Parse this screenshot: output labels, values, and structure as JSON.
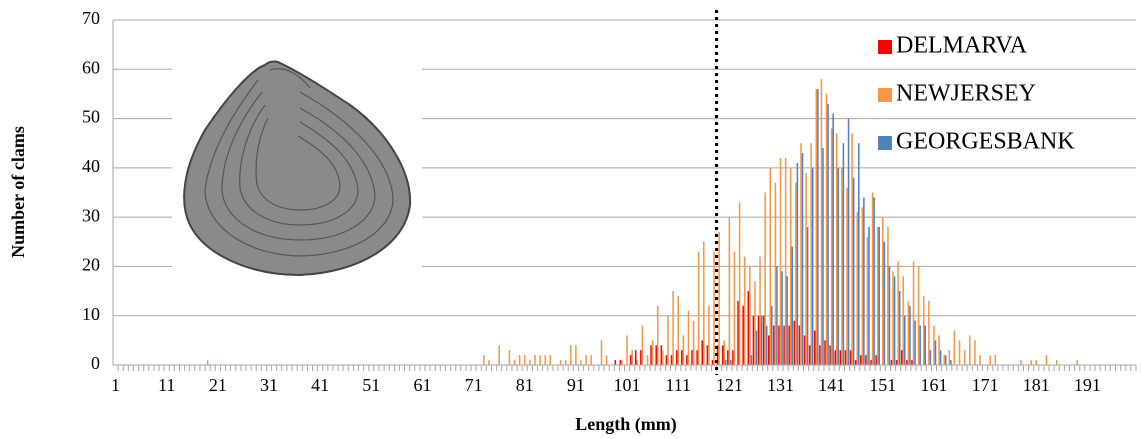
{
  "chart_data": {
    "type": "bar",
    "x_label": "Length (mm)",
    "y_label": "Number  of clams",
    "x": [
      1,
      2,
      3,
      4,
      5,
      6,
      7,
      8,
      9,
      10,
      11,
      12,
      13,
      14,
      15,
      16,
      17,
      18,
      19,
      20,
      21,
      22,
      23,
      24,
      25,
      26,
      27,
      28,
      29,
      30,
      31,
      32,
      33,
      34,
      35,
      36,
      37,
      38,
      39,
      40,
      41,
      42,
      43,
      44,
      45,
      46,
      47,
      48,
      49,
      50,
      51,
      52,
      53,
      54,
      55,
      56,
      57,
      58,
      59,
      60,
      61,
      62,
      63,
      64,
      65,
      66,
      67,
      68,
      69,
      70,
      71,
      72,
      73,
      74,
      75,
      76,
      77,
      78,
      79,
      80,
      81,
      82,
      83,
      84,
      85,
      86,
      87,
      88,
      89,
      90,
      91,
      92,
      93,
      94,
      95,
      96,
      97,
      98,
      99,
      100,
      101,
      102,
      103,
      104,
      105,
      106,
      107,
      108,
      109,
      110,
      111,
      112,
      113,
      114,
      115,
      116,
      117,
      118,
      119,
      120,
      121,
      122,
      123,
      124,
      125,
      126,
      127,
      128,
      129,
      130,
      131,
      132,
      133,
      134,
      135,
      136,
      137,
      138,
      139,
      140,
      141,
      142,
      143,
      144,
      145,
      146,
      147,
      148,
      149,
      150,
      151,
      152,
      153,
      154,
      155,
      156,
      157,
      158,
      159,
      160,
      161,
      162,
      163,
      164,
      165,
      166,
      167,
      168,
      169,
      170,
      171,
      172,
      173,
      174,
      175,
      176,
      177,
      178,
      179,
      180,
      181,
      182,
      183,
      184,
      185,
      186,
      187,
      188,
      189,
      190,
      191,
      192,
      193,
      194,
      195,
      196,
      197,
      198,
      199,
      200
    ],
    "xlim": [
      0.5,
      200.5
    ],
    "xticks": [
      1,
      11,
      21,
      31,
      41,
      51,
      61,
      71,
      81,
      91,
      101,
      111,
      121,
      131,
      141,
      151,
      161,
      171,
      181,
      191
    ],
    "ylim": [
      0,
      70
    ],
    "yticks": [
      0,
      10,
      20,
      30,
      40,
      50,
      60,
      70
    ],
    "grid": true,
    "reference_line": 118.5,
    "legend_position": "upper right",
    "series": [
      {
        "name": "DELMARVA",
        "color": "#ff0000",
        "values": [
          0,
          0,
          0,
          0,
          0,
          0,
          0,
          0,
          0,
          0,
          0,
          0,
          0,
          0,
          0,
          0,
          0,
          0,
          0,
          0,
          0,
          0,
          0,
          0,
          0,
          0,
          0,
          0,
          0,
          0,
          0,
          0,
          0,
          0,
          0,
          0,
          0,
          0,
          0,
          0,
          0,
          0,
          0,
          0,
          0,
          0,
          0,
          0,
          0,
          0,
          0,
          0,
          0,
          0,
          0,
          0,
          0,
          0,
          0,
          0,
          0,
          0,
          0,
          0,
          0,
          0,
          0,
          0,
          0,
          0,
          0,
          0,
          0,
          0,
          0,
          0,
          0,
          0,
          0,
          0,
          0,
          0,
          0,
          0,
          0,
          0,
          0,
          0,
          0,
          0,
          0,
          0,
          0,
          0,
          0,
          0,
          0,
          0,
          1,
          1,
          0,
          2,
          3,
          3,
          0,
          4,
          4,
          4,
          2,
          2,
          3,
          3,
          2,
          3,
          3,
          5,
          4,
          1,
          4,
          4,
          3,
          3,
          13,
          12,
          15,
          10,
          10,
          10,
          6,
          8,
          8,
          8,
          8,
          9,
          8,
          6,
          4,
          7,
          4,
          5,
          4,
          3,
          3,
          3,
          3,
          1,
          2,
          2,
          1,
          2,
          0,
          0,
          1,
          1,
          3,
          1,
          1,
          0,
          0,
          0,
          0,
          0,
          0,
          0,
          0,
          0,
          0,
          0,
          0,
          0,
          0,
          0,
          0,
          0,
          0,
          0,
          0,
          0,
          0,
          0,
          0,
          0,
          0,
          0,
          0,
          0,
          0,
          0,
          0,
          0,
          0,
          0,
          0,
          0,
          0,
          0,
          0,
          0,
          0,
          0
        ]
      },
      {
        "name": "NEWJERSEY",
        "color": "#f79646",
        "values": [
          0,
          0,
          0,
          0,
          0,
          0,
          0,
          0,
          0,
          0,
          0,
          0,
          0,
          0,
          0,
          0,
          0,
          0,
          1,
          0,
          0,
          0,
          0,
          0,
          0,
          0,
          0,
          0,
          0,
          0,
          0,
          0,
          0,
          0,
          0,
          0,
          0,
          0,
          0,
          0,
          0,
          0,
          0,
          0,
          0,
          0,
          0,
          0,
          0,
          0,
          0,
          0,
          0,
          0,
          0,
          0,
          0,
          0,
          0,
          0,
          0,
          0,
          0,
          0,
          0,
          0,
          0,
          0,
          0,
          0,
          0,
          0,
          2,
          1,
          0,
          4,
          0,
          3,
          1,
          2,
          2,
          1,
          2,
          2,
          2,
          2,
          0,
          1,
          1,
          4,
          4,
          1,
          2,
          2,
          0,
          5,
          2,
          0,
          0,
          1,
          6,
          3,
          1,
          8,
          2,
          5,
          12,
          3,
          10,
          15,
          14,
          6,
          11,
          9,
          23,
          25,
          12,
          23,
          27,
          5,
          30,
          23,
          33,
          22,
          20,
          17,
          22,
          35,
          40,
          37,
          42,
          42,
          40,
          37,
          45,
          39,
          45,
          56,
          58,
          55,
          48,
          47,
          40,
          36,
          47,
          31,
          32,
          26,
          35,
          28,
          30,
          28,
          19,
          21,
          18,
          13,
          21,
          20,
          14,
          13,
          8,
          6,
          2,
          3,
          7,
          5,
          3,
          6,
          5,
          2,
          0,
          2,
          2,
          0,
          0,
          0,
          0,
          1,
          0,
          1,
          1,
          0,
          2,
          0,
          1,
          0,
          0,
          0,
          1,
          0,
          0,
          0,
          0,
          0,
          0,
          0,
          0,
          0,
          0,
          0
        ]
      },
      {
        "name": "GEORGESBANK",
        "color": "#4f81bd",
        "values": [
          0,
          0,
          0,
          0,
          0,
          0,
          0,
          0,
          0,
          0,
          0,
          0,
          0,
          0,
          0,
          0,
          0,
          0,
          0,
          0,
          0,
          0,
          0,
          0,
          0,
          0,
          0,
          0,
          0,
          0,
          0,
          0,
          0,
          0,
          0,
          0,
          0,
          0,
          0,
          0,
          0,
          0,
          0,
          0,
          0,
          0,
          0,
          0,
          0,
          0,
          0,
          0,
          0,
          0,
          0,
          0,
          0,
          0,
          0,
          0,
          0,
          0,
          0,
          0,
          0,
          0,
          0,
          0,
          0,
          0,
          0,
          0,
          0,
          0,
          0,
          0,
          0,
          0,
          0,
          0,
          0,
          0,
          0,
          0,
          0,
          0,
          0,
          0,
          0,
          0,
          0,
          0,
          0,
          0,
          0,
          0,
          0,
          0,
          0,
          0,
          0,
          0,
          0,
          0,
          0,
          0,
          0,
          0,
          0,
          0,
          0,
          0,
          0,
          0,
          0,
          0,
          0,
          0,
          0,
          1,
          1,
          0,
          0,
          0,
          2,
          7,
          10,
          8,
          12,
          20,
          19,
          18,
          24,
          41,
          43,
          28,
          40,
          56,
          44,
          53,
          51,
          40,
          45,
          50,
          38,
          45,
          34,
          28,
          34,
          28,
          25,
          20,
          18,
          15,
          10,
          12,
          9,
          8,
          8,
          3,
          5,
          3,
          2,
          1,
          0,
          0,
          0,
          0,
          0,
          0,
          0,
          0,
          0,
          0,
          0,
          0,
          0,
          0,
          0,
          0,
          0,
          0,
          0,
          0,
          0,
          0,
          0,
          0,
          0,
          0,
          0,
          0,
          0,
          0,
          0,
          0,
          0,
          0,
          0,
          0
        ]
      }
    ]
  }
}
